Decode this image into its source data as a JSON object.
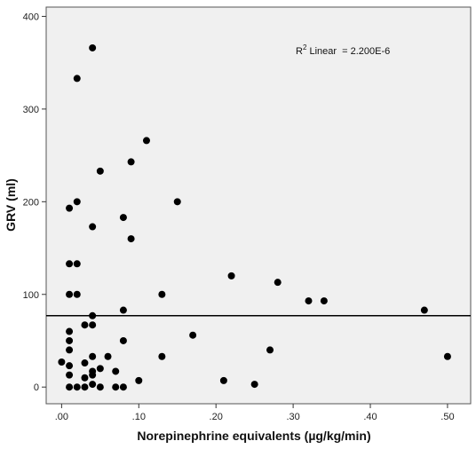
{
  "chart_data": {
    "type": "scatter",
    "title": "",
    "xlabel": "Norepinephrine equivalents (µg/kg/min)",
    "ylabel": "GRV (ml)",
    "xlim": [
      -0.02,
      0.53
    ],
    "ylim": [
      -18,
      410
    ],
    "x_ticks": [
      0,
      0.1,
      0.2,
      0.3,
      0.4,
      0.5
    ],
    "x_tick_labels": [
      ".00",
      ".10",
      ".20",
      ".30",
      ".40",
      ".50"
    ],
    "y_ticks": [
      0,
      100,
      200,
      300,
      400
    ],
    "y_tick_labels": [
      "0",
      "100",
      "200",
      "300",
      "400"
    ],
    "grid": false,
    "background_color": "#f0f0f0",
    "marker_color": "#000000",
    "fit_line": {
      "type": "linear",
      "y": 77
    },
    "annotation": {
      "prefix": "R",
      "superscript": "2",
      "rest": " Linear  = 2.200E-6"
    },
    "points": [
      {
        "x": 0.04,
        "y": 366
      },
      {
        "x": 0.02,
        "y": 333
      },
      {
        "x": 0.11,
        "y": 266
      },
      {
        "x": 0.09,
        "y": 243
      },
      {
        "x": 0.05,
        "y": 233
      },
      {
        "x": 0.01,
        "y": 193
      },
      {
        "x": 0.02,
        "y": 200
      },
      {
        "x": 0.15,
        "y": 200
      },
      {
        "x": 0.08,
        "y": 183
      },
      {
        "x": 0.04,
        "y": 173
      },
      {
        "x": 0.09,
        "y": 160
      },
      {
        "x": 0.01,
        "y": 133
      },
      {
        "x": 0.02,
        "y": 133
      },
      {
        "x": 0.22,
        "y": 120
      },
      {
        "x": 0.28,
        "y": 113
      },
      {
        "x": 0.01,
        "y": 100
      },
      {
        "x": 0.02,
        "y": 100
      },
      {
        "x": 0.13,
        "y": 100
      },
      {
        "x": 0.32,
        "y": 93
      },
      {
        "x": 0.34,
        "y": 93
      },
      {
        "x": 0.08,
        "y": 83
      },
      {
        "x": 0.47,
        "y": 83
      },
      {
        "x": 0.04,
        "y": 77
      },
      {
        "x": 0.03,
        "y": 67
      },
      {
        "x": 0.04,
        "y": 67
      },
      {
        "x": 0.01,
        "y": 60
      },
      {
        "x": 0.17,
        "y": 56
      },
      {
        "x": 0.01,
        "y": 50
      },
      {
        "x": 0.08,
        "y": 50
      },
      {
        "x": 0.01,
        "y": 40
      },
      {
        "x": 0.27,
        "y": 40
      },
      {
        "x": 0.04,
        "y": 33
      },
      {
        "x": 0.06,
        "y": 33
      },
      {
        "x": 0.13,
        "y": 33
      },
      {
        "x": 0.5,
        "y": 33
      },
      {
        "x": 0.0,
        "y": 27
      },
      {
        "x": 0.01,
        "y": 23
      },
      {
        "x": 0.03,
        "y": 26
      },
      {
        "x": 0.05,
        "y": 20
      },
      {
        "x": 0.07,
        "y": 17
      },
      {
        "x": 0.04,
        "y": 13
      },
      {
        "x": 0.01,
        "y": 13
      },
      {
        "x": 0.04,
        "y": 17
      },
      {
        "x": 0.03,
        "y": 10
      },
      {
        "x": 0.1,
        "y": 7
      },
      {
        "x": 0.21,
        "y": 7
      },
      {
        "x": 0.04,
        "y": 3
      },
      {
        "x": 0.25,
        "y": 3
      },
      {
        "x": 0.01,
        "y": 0
      },
      {
        "x": 0.02,
        "y": 0
      },
      {
        "x": 0.03,
        "y": 0
      },
      {
        "x": 0.05,
        "y": 0
      },
      {
        "x": 0.07,
        "y": 0
      },
      {
        "x": 0.08,
        "y": 0
      }
    ]
  }
}
